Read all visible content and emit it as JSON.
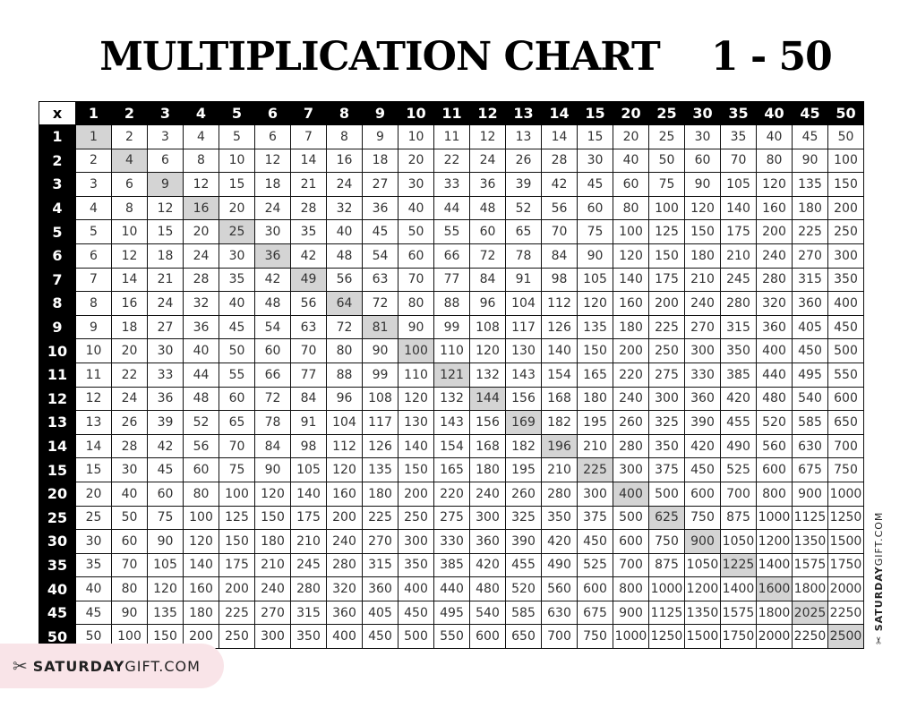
{
  "title": "MULTIPLICATION CHART    1 - 50",
  "corner_label": "x",
  "factors": [
    1,
    2,
    3,
    4,
    5,
    6,
    7,
    8,
    9,
    10,
    11,
    12,
    13,
    14,
    15,
    20,
    25,
    30,
    35,
    40,
    45,
    50
  ],
  "rows": [
    [
      1,
      2,
      3,
      4,
      5,
      6,
      7,
      8,
      9,
      10,
      11,
      12,
      13,
      14,
      15,
      20,
      25,
      30,
      35,
      40,
      45,
      50
    ],
    [
      2,
      4,
      6,
      8,
      10,
      12,
      14,
      16,
      18,
      20,
      22,
      24,
      26,
      28,
      30,
      40,
      50,
      60,
      70,
      80,
      90,
      100
    ],
    [
      3,
      6,
      9,
      12,
      15,
      18,
      21,
      24,
      27,
      30,
      33,
      36,
      39,
      42,
      45,
      60,
      75,
      90,
      105,
      120,
      135,
      150
    ],
    [
      4,
      8,
      12,
      16,
      20,
      24,
      28,
      32,
      36,
      40,
      44,
      48,
      52,
      56,
      60,
      80,
      100,
      120,
      140,
      160,
      180,
      200
    ],
    [
      5,
      10,
      15,
      20,
      25,
      30,
      35,
      40,
      45,
      50,
      55,
      60,
      65,
      70,
      75,
      100,
      125,
      150,
      175,
      200,
      225,
      250
    ],
    [
      6,
      12,
      18,
      24,
      30,
      36,
      42,
      48,
      54,
      60,
      66,
      72,
      78,
      84,
      90,
      120,
      150,
      180,
      210,
      240,
      270,
      300
    ],
    [
      7,
      14,
      21,
      28,
      35,
      42,
      49,
      56,
      63,
      70,
      77,
      84,
      91,
      98,
      105,
      140,
      175,
      210,
      245,
      280,
      315,
      350
    ],
    [
      8,
      16,
      24,
      32,
      40,
      48,
      56,
      64,
      72,
      80,
      88,
      96,
      104,
      112,
      120,
      160,
      200,
      240,
      280,
      320,
      360,
      400
    ],
    [
      9,
      18,
      27,
      36,
      45,
      54,
      63,
      72,
      81,
      90,
      99,
      108,
      117,
      126,
      135,
      180,
      225,
      270,
      315,
      360,
      405,
      450
    ],
    [
      10,
      20,
      30,
      40,
      50,
      60,
      70,
      80,
      90,
      100,
      110,
      120,
      130,
      140,
      150,
      200,
      250,
      300,
      350,
      400,
      450,
      500
    ],
    [
      11,
      22,
      33,
      44,
      55,
      66,
      77,
      88,
      99,
      110,
      121,
      132,
      143,
      154,
      165,
      220,
      275,
      330,
      385,
      440,
      495,
      550
    ],
    [
      12,
      24,
      36,
      48,
      60,
      72,
      84,
      96,
      108,
      120,
      132,
      144,
      156,
      168,
      180,
      240,
      300,
      360,
      420,
      480,
      540,
      600
    ],
    [
      13,
      26,
      39,
      52,
      65,
      78,
      91,
      104,
      117,
      130,
      143,
      156,
      169,
      182,
      195,
      260,
      325,
      390,
      455,
      520,
      585,
      650
    ],
    [
      14,
      28,
      42,
      56,
      70,
      84,
      98,
      112,
      126,
      140,
      154,
      168,
      182,
      196,
      210,
      280,
      350,
      420,
      490,
      560,
      630,
      700
    ],
    [
      15,
      30,
      45,
      60,
      75,
      90,
      105,
      120,
      135,
      150,
      165,
      180,
      195,
      210,
      225,
      300,
      375,
      450,
      525,
      600,
      675,
      750
    ],
    [
      20,
      40,
      60,
      80,
      100,
      120,
      140,
      160,
      180,
      200,
      220,
      240,
      260,
      280,
      300,
      400,
      500,
      600,
      700,
      800,
      900,
      1000
    ],
    [
      25,
      50,
      75,
      100,
      125,
      150,
      175,
      200,
      225,
      250,
      275,
      300,
      325,
      350,
      375,
      500,
      625,
      750,
      875,
      1000,
      1125,
      1250
    ],
    [
      30,
      60,
      90,
      120,
      150,
      180,
      210,
      240,
      270,
      300,
      330,
      360,
      390,
      420,
      450,
      600,
      750,
      900,
      1050,
      1200,
      1350,
      1500
    ],
    [
      35,
      70,
      105,
      140,
      175,
      210,
      245,
      280,
      315,
      350,
      385,
      420,
      455,
      490,
      525,
      700,
      875,
      1050,
      1225,
      1400,
      1575,
      1750
    ],
    [
      40,
      80,
      120,
      160,
      200,
      240,
      280,
      320,
      360,
      400,
      440,
      480,
      520,
      560,
      600,
      800,
      1000,
      1200,
      1400,
      1600,
      1800,
      2000
    ],
    [
      45,
      90,
      135,
      180,
      225,
      270,
      315,
      360,
      405,
      450,
      495,
      540,
      585,
      630,
      675,
      900,
      1125,
      1350,
      1575,
      1800,
      2025,
      2250
    ],
    [
      50,
      100,
      150,
      200,
      250,
      300,
      350,
      400,
      450,
      500,
      550,
      600,
      650,
      700,
      750,
      1000,
      1250,
      1500,
      1750,
      2000,
      2250,
      2500
    ]
  ],
  "colors": {
    "header_bg": "#000000",
    "diagonal_highlight": "#d4d4d4",
    "logo_bg": "#f9e4e8"
  },
  "logo": {
    "bold": "SATURDAY",
    "light": "GIFT.COM",
    "icon": "bow-scissors-icon"
  },
  "side_logo": {
    "bold": "SATURDAY",
    "light": "GIFT.COM"
  }
}
